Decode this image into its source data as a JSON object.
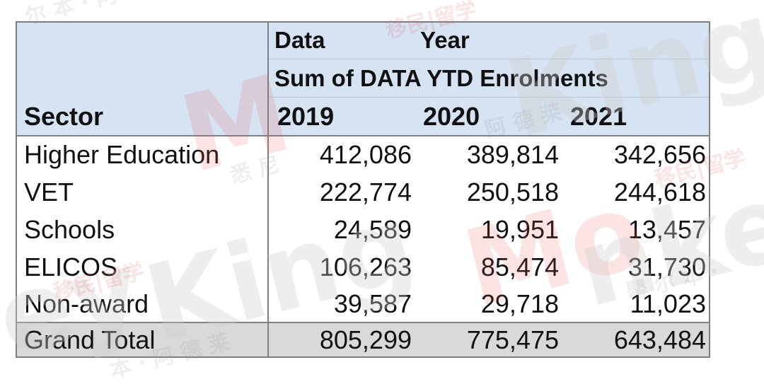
{
  "pivot": {
    "field_labels": {
      "data": "Data",
      "year": "Year",
      "value_field": "Sum of DATA YTD Enrolments",
      "row_field": "Sector"
    },
    "years": [
      "2019",
      "2020",
      "2021"
    ],
    "rows": [
      {
        "sector": "Higher Education",
        "v2019": "412,086",
        "v2020": "389,814",
        "v2021": "342,656"
      },
      {
        "sector": "VET",
        "v2019": "222,774",
        "v2020": "250,518",
        "v2021": "244,618"
      },
      {
        "sector": "Schools",
        "v2019": "24,589",
        "v2020": "19,951",
        "v2021": "13,457"
      },
      {
        "sector": "ELICOS",
        "v2019": "106,263",
        "v2020": "85,474",
        "v2021": "31,730"
      },
      {
        "sector": "Non-award",
        "v2019": "39,587",
        "v2020": "29,718",
        "v2021": "11,023"
      }
    ],
    "grand_total": {
      "label": "Grand Total",
      "v2019": "805,299",
      "v2020": "775,475",
      "v2021": "643,484"
    }
  },
  "watermark": {
    "brand_1": "Monkey",
    "brand_2": "King",
    "tag": "移民|留学",
    "chars": "悉 尼 · 阿 德 莱 德 · 墨 尔 本"
  },
  "colors": {
    "header_fill": "#d6e3f2",
    "total_fill": "#d9d9d9",
    "border": "#7f7f7f",
    "watermark_red": "#eb5a5a"
  }
}
